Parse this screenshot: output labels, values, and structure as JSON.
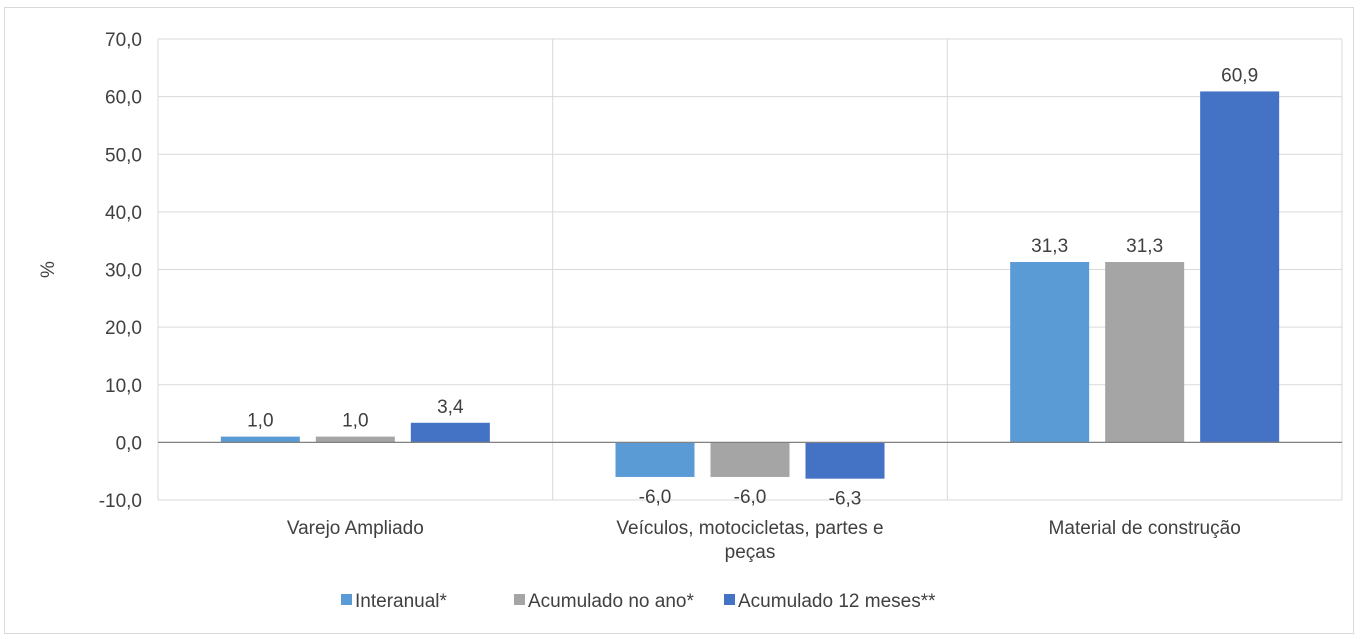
{
  "chart_data": {
    "type": "bar",
    "categories": [
      [
        "Varejo Ampliado"
      ],
      [
        "Veículos, motocicletas, partes e",
        "peças"
      ],
      [
        "Material de construção"
      ]
    ],
    "series": [
      {
        "name": "Interanual*",
        "values": [
          1.0,
          -6.0,
          31.3
        ],
        "labels": [
          "1,0",
          "-6,0",
          "31,3"
        ]
      },
      {
        "name": "Acumulado no ano*",
        "values": [
          1.0,
          -6.0,
          31.3
        ],
        "labels": [
          "1,0",
          "-6,0",
          "31,3"
        ]
      },
      {
        "name": "Acumulado 12 meses**",
        "values": [
          3.4,
          -6.3,
          60.9
        ],
        "labels": [
          "3,4",
          "-6,3",
          "60,9"
        ]
      }
    ],
    "ylabel": "%",
    "ylim": [
      -10,
      70
    ],
    "yticks": [
      70,
      60,
      50,
      40,
      30,
      20,
      10,
      0,
      -10
    ],
    "ytick_labels": [
      "70,0",
      "60,0",
      "50,0",
      "40,0",
      "30,0",
      "20,0",
      "10,0",
      "0,0",
      "-10,0"
    ],
    "grid": true,
    "legend_position": "bottom",
    "colors": [
      "#5b9bd5",
      "#a5a5a5",
      "#4472c4"
    ]
  }
}
